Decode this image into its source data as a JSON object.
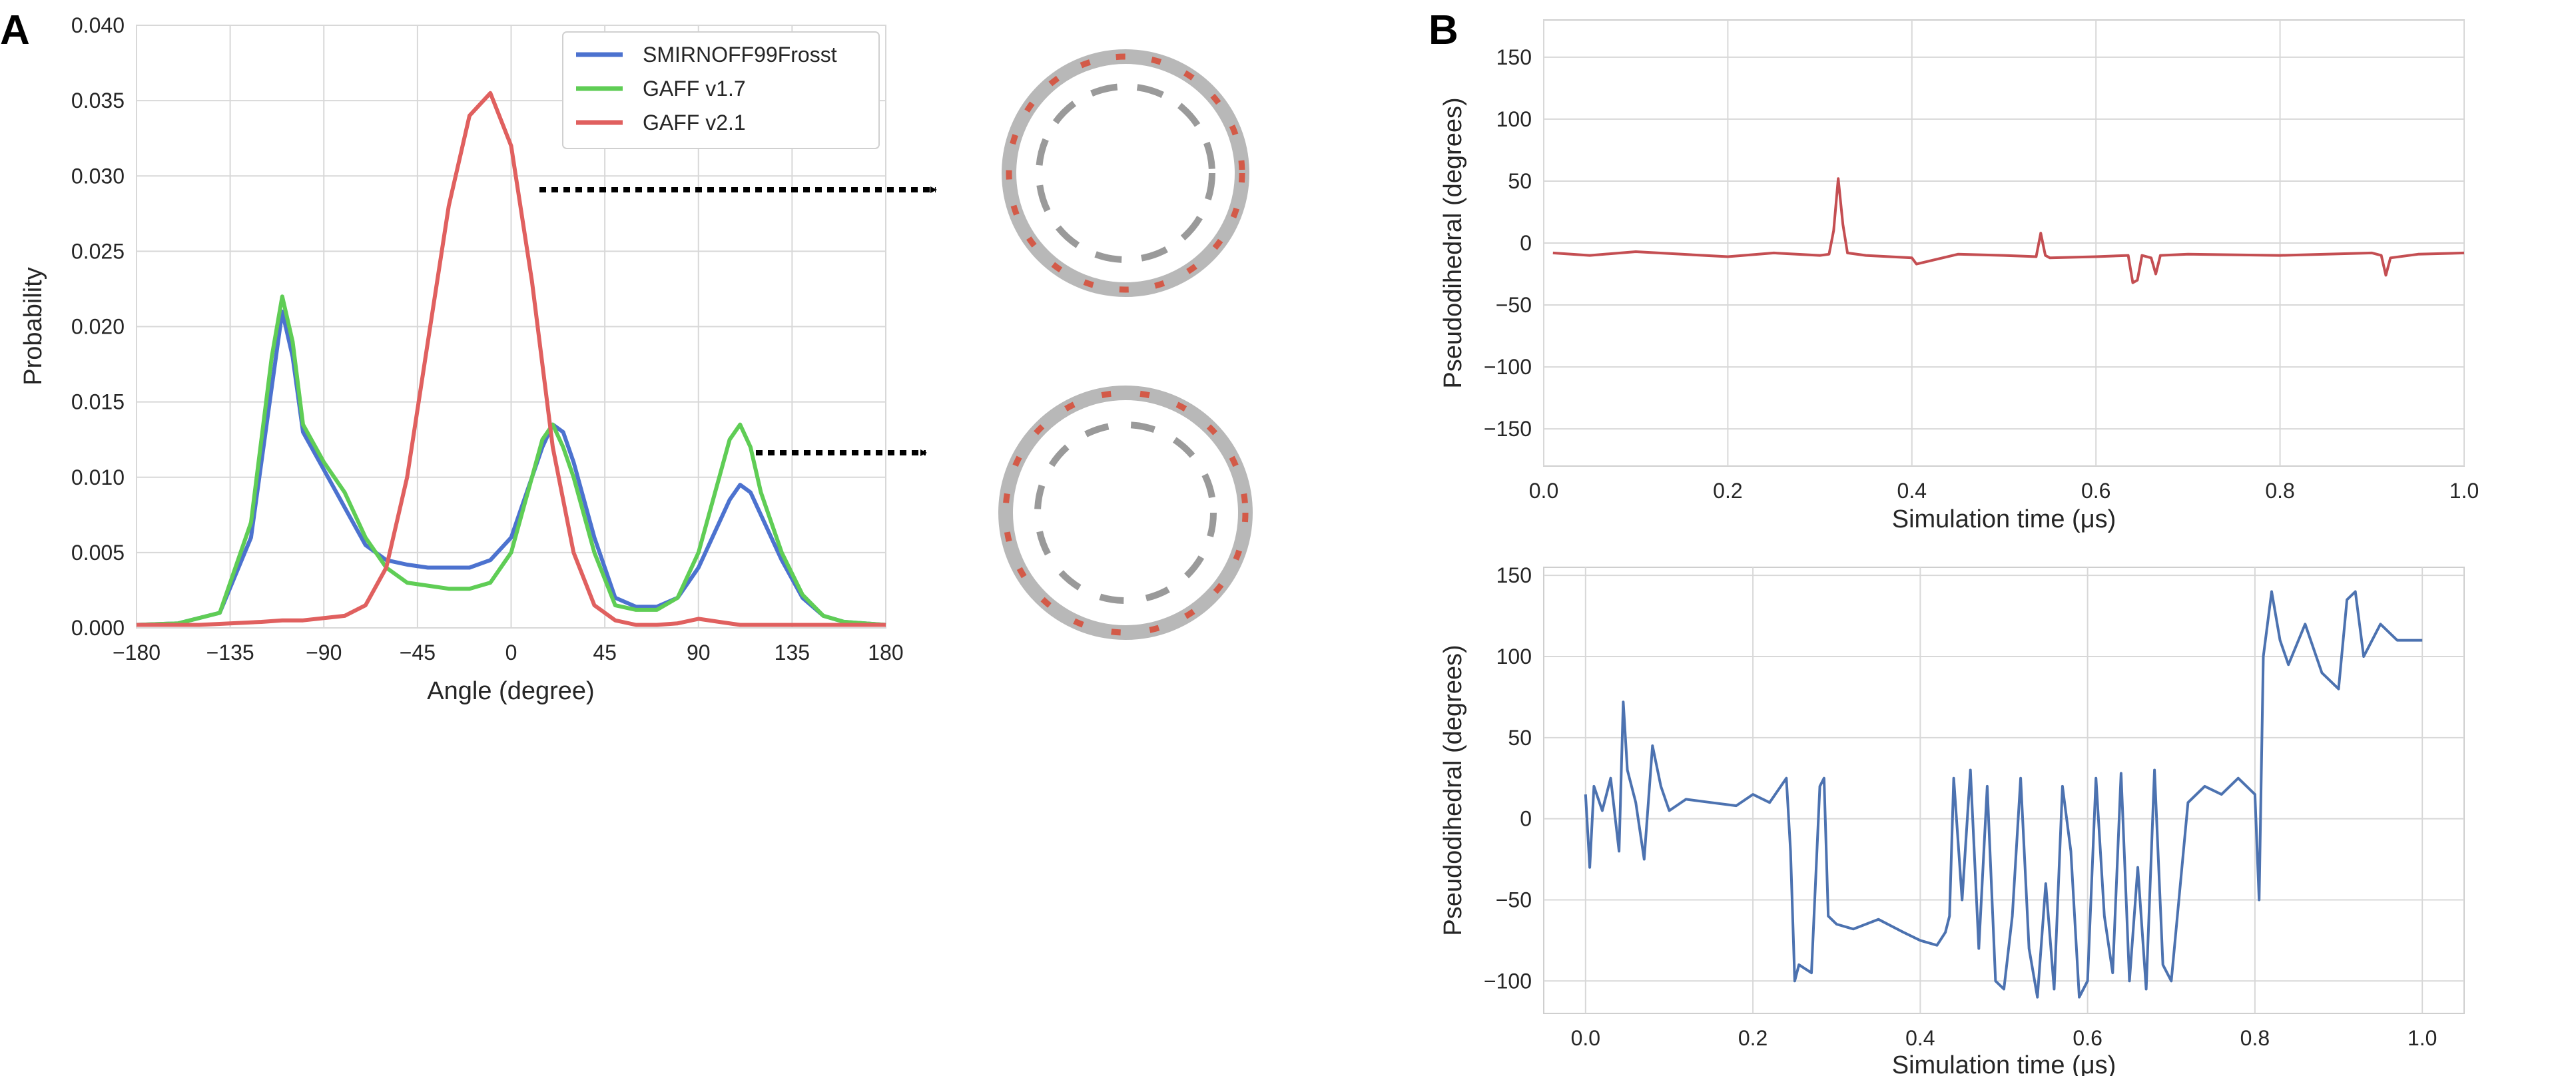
{
  "panels": {
    "a": "A",
    "b": "B"
  },
  "colors": {
    "smirnoff": "#4c72cf",
    "gaff17": "#5fcd55",
    "gaff21": "#e0605f",
    "traceB1": "#c44e52",
    "traceB2": "#4c72b0"
  },
  "chart_data": [
    {
      "type": "line",
      "xlabel": "Angle (degree)",
      "ylabel": "Probability",
      "xlim": [
        -180,
        180
      ],
      "ylim": [
        0,
        0.04
      ],
      "xticks": [
        "−180",
        "−135",
        "−90",
        "−45",
        "0",
        "45",
        "90",
        "135",
        "180"
      ],
      "yticks": [
        "0.000",
        "0.005",
        "0.010",
        "0.015",
        "0.020",
        "0.025",
        "0.030",
        "0.035",
        "0.040"
      ],
      "grid": true,
      "legend_position": "top-right",
      "series": [
        {
          "name": "SMIRNOFF99Frosst",
          "color": "#4c72cf",
          "x": [
            -180,
            -160,
            -140,
            -125,
            -115,
            -110,
            -105,
            -100,
            -90,
            -80,
            -70,
            -60,
            -50,
            -40,
            -30,
            -20,
            -10,
            0,
            10,
            15,
            20,
            25,
            30,
            40,
            50,
            60,
            70,
            80,
            90,
            100,
            105,
            110,
            115,
            120,
            130,
            140,
            150,
            160,
            170,
            180
          ],
          "y": [
            0.0002,
            0.0003,
            0.001,
            0.006,
            0.016,
            0.021,
            0.018,
            0.013,
            0.0105,
            0.008,
            0.0055,
            0.0045,
            0.0042,
            0.004,
            0.004,
            0.004,
            0.0045,
            0.006,
            0.01,
            0.012,
            0.0135,
            0.013,
            0.011,
            0.006,
            0.002,
            0.0014,
            0.0014,
            0.002,
            0.004,
            0.007,
            0.0085,
            0.0095,
            0.009,
            0.0075,
            0.0045,
            0.002,
            0.0008,
            0.0004,
            0.0003,
            0.0002
          ]
        },
        {
          "name": "GAFF v1.7",
          "color": "#5fcd55",
          "x": [
            -180,
            -160,
            -140,
            -125,
            -115,
            -110,
            -105,
            -100,
            -90,
            -80,
            -70,
            -60,
            -50,
            -40,
            -30,
            -20,
            -10,
            0,
            10,
            15,
            20,
            25,
            30,
            40,
            50,
            60,
            70,
            80,
            90,
            100,
            105,
            110,
            115,
            120,
            130,
            140,
            150,
            160,
            170,
            180
          ],
          "y": [
            0.0002,
            0.0003,
            0.001,
            0.007,
            0.018,
            0.022,
            0.019,
            0.0135,
            0.011,
            0.009,
            0.006,
            0.004,
            0.003,
            0.0028,
            0.0026,
            0.0026,
            0.003,
            0.005,
            0.01,
            0.0125,
            0.0135,
            0.012,
            0.01,
            0.005,
            0.0015,
            0.0012,
            0.0012,
            0.002,
            0.005,
            0.01,
            0.0125,
            0.0135,
            0.012,
            0.009,
            0.005,
            0.0022,
            0.0008,
            0.0004,
            0.0003,
            0.0002
          ]
        },
        {
          "name": "GAFF v2.1",
          "color": "#e0605f",
          "x": [
            -180,
            -150,
            -120,
            -110,
            -100,
            -80,
            -70,
            -60,
            -50,
            -40,
            -30,
            -20,
            -10,
            0,
            10,
            20,
            30,
            40,
            50,
            60,
            70,
            80,
            90,
            100,
            110,
            120,
            150,
            180
          ],
          "y": [
            0.0002,
            0.0002,
            0.0004,
            0.0005,
            0.0005,
            0.0008,
            0.0015,
            0.004,
            0.01,
            0.019,
            0.028,
            0.034,
            0.0355,
            0.032,
            0.023,
            0.012,
            0.005,
            0.0015,
            0.0005,
            0.0002,
            0.0002,
            0.0003,
            0.0006,
            0.0004,
            0.0002,
            0.0002,
            0.0002,
            0.0002
          ]
        }
      ]
    },
    {
      "type": "line",
      "xlabel": "Simulation time (μs)",
      "ylabel": "Pseudodihedral (degrees)",
      "xlim": [
        0,
        1.0
      ],
      "ylim": [
        -180,
        180
      ],
      "xticks": [
        "0.0",
        "0.2",
        "0.4",
        "0.6",
        "0.8",
        "1.0"
      ],
      "yticks": [
        "150",
        "100",
        "50",
        "0",
        "−50",
        "−100",
        "−150"
      ],
      "grid": true,
      "series": [
        {
          "color": "#c44e52",
          "x": [
            0.01,
            0.05,
            0.1,
            0.15,
            0.2,
            0.25,
            0.3,
            0.31,
            0.315,
            0.32,
            0.325,
            0.33,
            0.35,
            0.4,
            0.405,
            0.45,
            0.5,
            0.535,
            0.54,
            0.545,
            0.55,
            0.6,
            0.635,
            0.64,
            0.645,
            0.65,
            0.66,
            0.665,
            0.67,
            0.7,
            0.8,
            0.9,
            0.91,
            0.915,
            0.92,
            0.95,
            1.0
          ],
          "y": [
            -8,
            -10,
            -7,
            -9,
            -11,
            -8,
            -10,
            -9,
            10,
            52,
            15,
            -8,
            -10,
            -12,
            -17,
            -9,
            -10,
            -11,
            8,
            -10,
            -12,
            -11,
            -10,
            -32,
            -30,
            -10,
            -12,
            -25,
            -10,
            -9,
            -10,
            -8,
            -10,
            -26,
            -12,
            -9,
            -8
          ]
        }
      ]
    },
    {
      "type": "line",
      "xlabel": "Simulation time (μs)",
      "ylabel": "Pseudodihedral (degrees)",
      "xlim": [
        -0.05,
        1.05
      ],
      "ylim": [
        -120,
        155
      ],
      "xticks": [
        "0.0",
        "0.2",
        "0.4",
        "0.6",
        "0.8",
        "1.0"
      ],
      "yticks": [
        "150",
        "100",
        "50",
        "0",
        "−50",
        "−100"
      ],
      "grid": true,
      "series": [
        {
          "color": "#4c72b0",
          "x": [
            0.0,
            0.005,
            0.01,
            0.02,
            0.03,
            0.04,
            0.045,
            0.05,
            0.06,
            0.07,
            0.08,
            0.09,
            0.1,
            0.12,
            0.15,
            0.18,
            0.2,
            0.22,
            0.24,
            0.245,
            0.25,
            0.255,
            0.27,
            0.28,
            0.285,
            0.29,
            0.3,
            0.32,
            0.35,
            0.38,
            0.4,
            0.42,
            0.43,
            0.435,
            0.44,
            0.45,
            0.46,
            0.47,
            0.48,
            0.49,
            0.5,
            0.51,
            0.52,
            0.53,
            0.54,
            0.55,
            0.56,
            0.57,
            0.58,
            0.59,
            0.6,
            0.61,
            0.62,
            0.63,
            0.64,
            0.65,
            0.66,
            0.67,
            0.68,
            0.69,
            0.7,
            0.72,
            0.74,
            0.76,
            0.78,
            0.8,
            0.805,
            0.81,
            0.82,
            0.83,
            0.84,
            0.86,
            0.88,
            0.9,
            0.91,
            0.92,
            0.93,
            0.95,
            0.97,
            1.0
          ],
          "y": [
            15,
            -30,
            20,
            5,
            25,
            -20,
            72,
            30,
            10,
            -25,
            45,
            20,
            5,
            12,
            10,
            8,
            15,
            10,
            25,
            -20,
            -100,
            -90,
            -95,
            20,
            25,
            -60,
            -65,
            -68,
            -62,
            -70,
            -75,
            -78,
            -70,
            -60,
            25,
            -50,
            30,
            -80,
            20,
            -100,
            -105,
            -60,
            25,
            -80,
            -110,
            -40,
            -105,
            20,
            -20,
            -110,
            -100,
            25,
            -60,
            -95,
            28,
            -100,
            -30,
            -105,
            30,
            -90,
            -100,
            10,
            20,
            15,
            25,
            15,
            -50,
            100,
            140,
            110,
            95,
            120,
            90,
            80,
            135,
            140,
            100,
            120,
            110,
            110
          ]
        }
      ]
    }
  ]
}
